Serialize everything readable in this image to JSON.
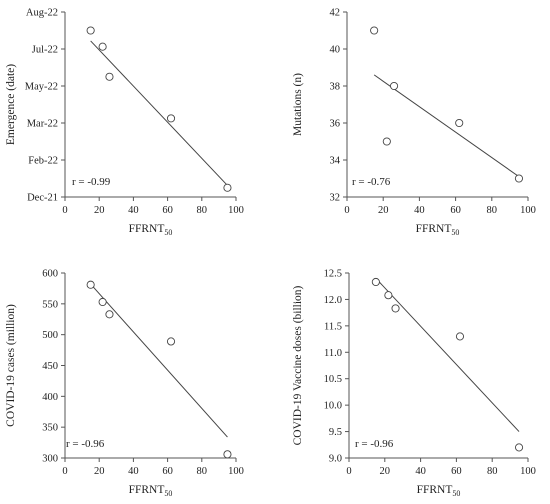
{
  "chart_data": [
    {
      "type": "scatter",
      "xlabel": "FFRNT",
      "xlabel_sub": "50",
      "ylabel": "Emergence (date)",
      "xlim": [
        0,
        100
      ],
      "xticks": [
        0,
        20,
        40,
        60,
        80,
        100
      ],
      "ylim": [
        0,
        8
      ],
      "yticks": [
        0,
        1.6,
        3.2,
        4.8,
        6.4,
        8
      ],
      "ytick_labels": [
        "Dec-21",
        "Feb-22",
        "Mar-22",
        "May-22",
        "Jul-22",
        "Aug-22"
      ],
      "points": [
        {
          "x": 15,
          "y": 7.2
        },
        {
          "x": 22,
          "y": 6.5
        },
        {
          "x": 26,
          "y": 5.2
        },
        {
          "x": 62,
          "y": 3.4
        },
        {
          "x": 95,
          "y": 0.4
        }
      ],
      "fit_line": [
        {
          "x": 15,
          "y": 6.75
        },
        {
          "x": 95,
          "y": 0.5
        }
      ],
      "annotation": "r = -0.99",
      "grid": false
    },
    {
      "type": "scatter",
      "xlabel": "FFRNT",
      "xlabel_sub": "50",
      "ylabel": "Mutations (n)",
      "xlim": [
        0,
        100
      ],
      "xticks": [
        0,
        20,
        40,
        60,
        80,
        100
      ],
      "ylim": [
        32,
        42
      ],
      "yticks": [
        32,
        34,
        36,
        38,
        40,
        42
      ],
      "ytick_labels": [
        "32",
        "34",
        "36",
        "38",
        "40",
        "42"
      ],
      "points": [
        {
          "x": 15,
          "y": 41
        },
        {
          "x": 22,
          "y": 35
        },
        {
          "x": 26,
          "y": 38
        },
        {
          "x": 62,
          "y": 36
        },
        {
          "x": 95,
          "y": 33
        }
      ],
      "fit_line": [
        {
          "x": 15,
          "y": 38.6
        },
        {
          "x": 95,
          "y": 33.1
        }
      ],
      "annotation": "r = -0.76",
      "grid": false
    },
    {
      "type": "scatter",
      "xlabel": "FFRNT",
      "xlabel_sub": "50",
      "ylabel": "COVID-19 cases (million)",
      "xlim": [
        0,
        100
      ],
      "xticks": [
        0,
        20,
        40,
        60,
        80,
        100
      ],
      "ylim": [
        300,
        600
      ],
      "yticks": [
        300,
        350,
        400,
        450,
        500,
        550,
        600
      ],
      "ytick_labels": [
        "300",
        "350",
        "400",
        "450",
        "500",
        "550",
        "600"
      ],
      "points": [
        {
          "x": 15,
          "y": 581
        },
        {
          "x": 22,
          "y": 553
        },
        {
          "x": 26,
          "y": 533
        },
        {
          "x": 62,
          "y": 489
        },
        {
          "x": 95,
          "y": 306
        }
      ],
      "fit_line": [
        {
          "x": 15,
          "y": 582
        },
        {
          "x": 95,
          "y": 334
        }
      ],
      "annotation": "r = -0.96",
      "grid": false
    },
    {
      "type": "scatter",
      "xlabel": "FFRNT",
      "xlabel_sub": "50",
      "ylabel": "COVID-19 Vaccine doses (billion)",
      "xlim": [
        0,
        100
      ],
      "xticks": [
        0,
        20,
        40,
        60,
        80,
        100
      ],
      "ylim": [
        9.0,
        12.5
      ],
      "yticks": [
        9.0,
        9.5,
        10.0,
        10.5,
        11.0,
        11.5,
        12.0,
        12.5
      ],
      "ytick_labels": [
        "9.0",
        "9.5",
        "10.0",
        "10.5",
        "11.0",
        "11.5",
        "12.0",
        "12.5"
      ],
      "points": [
        {
          "x": 15,
          "y": 12.33
        },
        {
          "x": 22,
          "y": 12.08
        },
        {
          "x": 26,
          "y": 11.83
        },
        {
          "x": 62,
          "y": 11.3
        },
        {
          "x": 95,
          "y": 9.2
        }
      ],
      "fit_line": [
        {
          "x": 15,
          "y": 12.4
        },
        {
          "x": 95,
          "y": 9.5
        }
      ],
      "annotation": "r = -0.96",
      "grid": false
    }
  ]
}
